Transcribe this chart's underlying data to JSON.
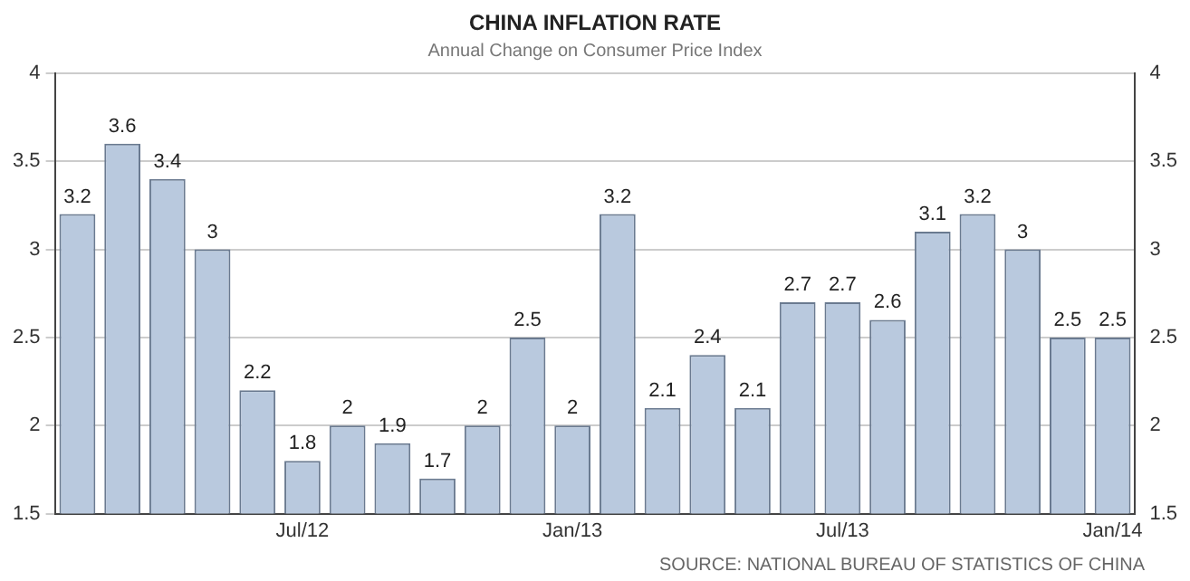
{
  "chart_data": {
    "type": "bar",
    "title": "CHINA INFLATION RATE",
    "subtitle": "Annual Change on Consumer Price Index",
    "categories": [
      null,
      null,
      null,
      null,
      null,
      "Jul/12",
      null,
      null,
      null,
      null,
      null,
      "Jan/13",
      null,
      null,
      null,
      null,
      null,
      "Jul/13",
      null,
      null,
      null,
      null,
      null,
      "Jan/14"
    ],
    "values": [
      3.2,
      3.6,
      3.4,
      3,
      2.2,
      1.8,
      2,
      1.9,
      1.7,
      2,
      2.5,
      2,
      3.2,
      2.1,
      2.4,
      2.1,
      2.7,
      2.7,
      2.6,
      3.1,
      3.2,
      3,
      2.5,
      2.5
    ],
    "color": "#b9c9de",
    "ylim": [
      1.5,
      4
    ],
    "yticks": [
      1.5,
      2,
      2.5,
      3,
      3.5,
      4
    ],
    "y2lim": [
      1.5,
      4
    ],
    "y2ticks": [
      1.5,
      2,
      2.5,
      3,
      3.5,
      4
    ],
    "grid": "y",
    "data_labels": true,
    "annotations": [
      "SOURCE: NATIONAL BUREAU OF STATISTICS OF CHINA"
    ]
  }
}
